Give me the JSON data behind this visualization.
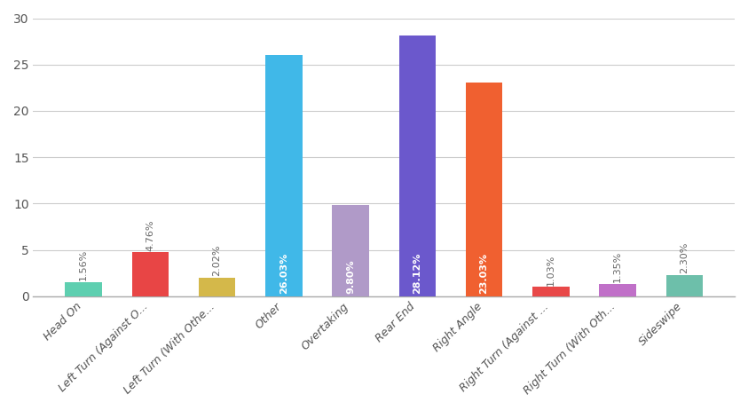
{
  "categories": [
    "Head On",
    "Left Turn (Against O...",
    "Left Turn (With Othe...",
    "Other",
    "Overtaking",
    "Rear End",
    "Right Angle",
    "Right Turn (Against ...",
    "Right Turn (With Oth...",
    "Sideswipe"
  ],
  "values": [
    1.56,
    4.76,
    2.02,
    26.03,
    9.8,
    28.12,
    23.03,
    1.03,
    1.35,
    2.3
  ],
  "labels": [
    "1.56%",
    "4.76%",
    "2.02%",
    "26.03%",
    "9.80%",
    "28.12%",
    "23.03%",
    "1.03%",
    "1.35%",
    "2.30%"
  ],
  "colors": [
    "#5ecfb0",
    "#e84545",
    "#d4b84a",
    "#40b8e8",
    "#b09ac8",
    "#6b58cc",
    "#f06030",
    "#e84848",
    "#c070c8",
    "#6dbfaa"
  ],
  "label_colors_inside": [
    "#555555",
    "#ffffff",
    "#555555",
    "#ffffff",
    "#ffffff",
    "#ffffff",
    "#ffffff",
    "#555555",
    "#555555",
    "#555555"
  ],
  "ylim": [
    0,
    30
  ],
  "yticks": [
    0,
    5,
    10,
    15,
    20,
    25,
    30
  ],
  "background_color": "#ffffff",
  "grid_color": "#cccccc",
  "tick_label_fontsize": 9,
  "bar_label_fontsize": 8,
  "bar_width": 0.55,
  "inside_threshold": 6
}
